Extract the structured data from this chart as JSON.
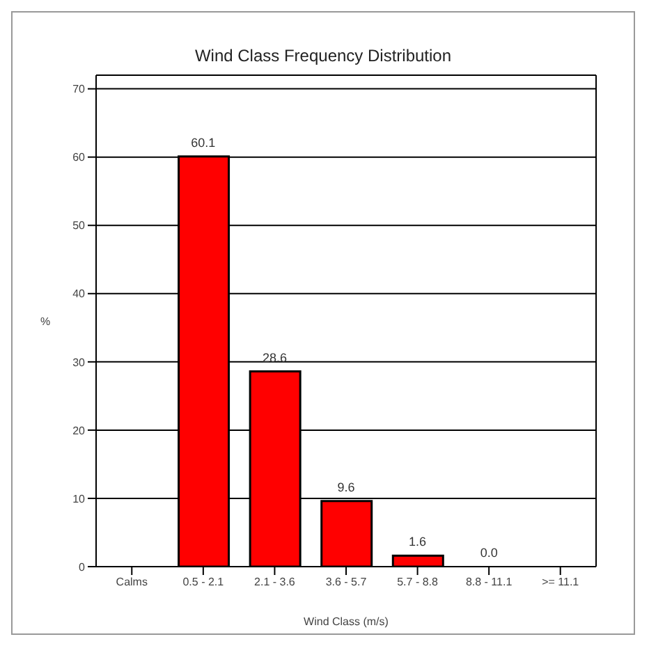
{
  "chart_data": {
    "type": "bar",
    "title": "Wind Class Frequency Distribution",
    "xlabel": "Wind Class (m/s)",
    "ylabel": "%",
    "categories": [
      "Calms",
      "0.5 - 2.1",
      "2.1 - 3.6",
      "3.6 - 5.7",
      "5.7 - 8.8",
      "8.8 - 11.1",
      ">= 11.1"
    ],
    "values": [
      null,
      60.1,
      28.6,
      9.6,
      1.6,
      0.0,
      null
    ],
    "value_labels": [
      null,
      "60.1",
      "28.6",
      "9.6",
      "1.6",
      "0.0",
      null
    ],
    "color": "#ff0000",
    "ylim": [
      0,
      72
    ],
    "yticks": [
      0,
      10,
      20,
      30,
      40,
      50,
      60,
      70
    ],
    "grid": "y"
  }
}
